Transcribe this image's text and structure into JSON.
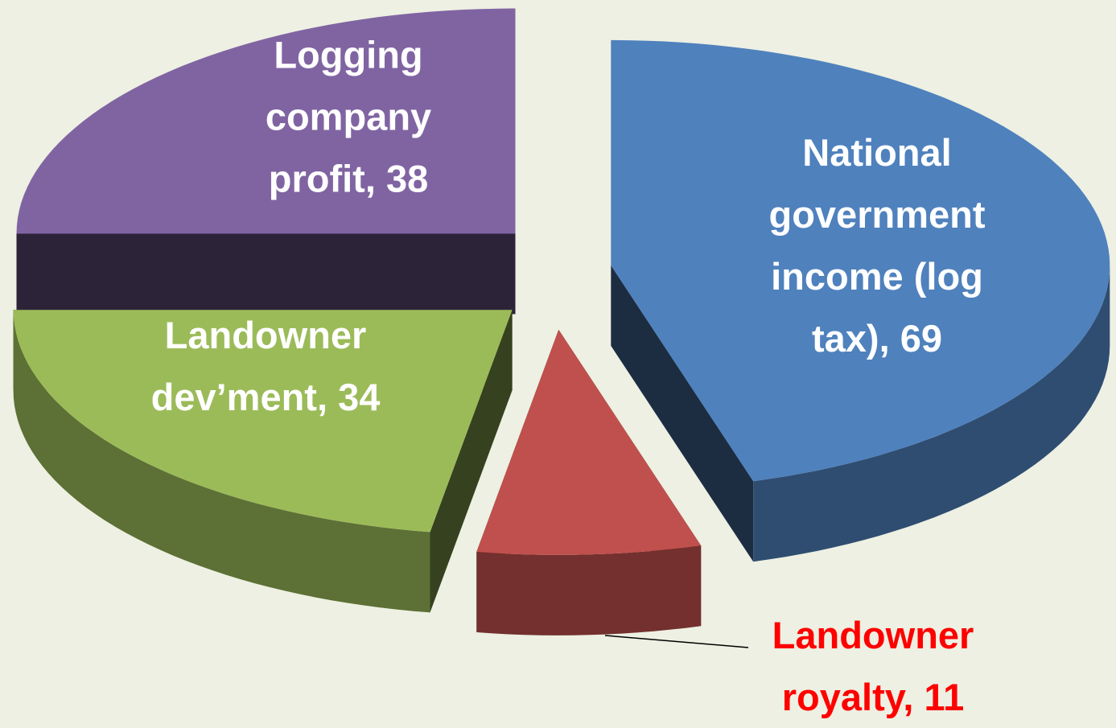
{
  "chart_data": {
    "type": "pie",
    "categories": [
      "National government income (log tax)",
      "Landowner royalty",
      "Landowner dev’ment",
      "Logging company profit"
    ],
    "values": [
      69,
      11,
      34,
      38
    ],
    "value_labels": [
      "National government income (log tax), 69",
      "Landowner royalty, 11",
      "Landowner dev’ment, 34",
      "Logging company profit, 38"
    ],
    "colors": [
      "#4f81bd",
      "#c0504d",
      "#9bbb59",
      "#8064a2"
    ],
    "exploded": true,
    "three_d": true
  }
}
